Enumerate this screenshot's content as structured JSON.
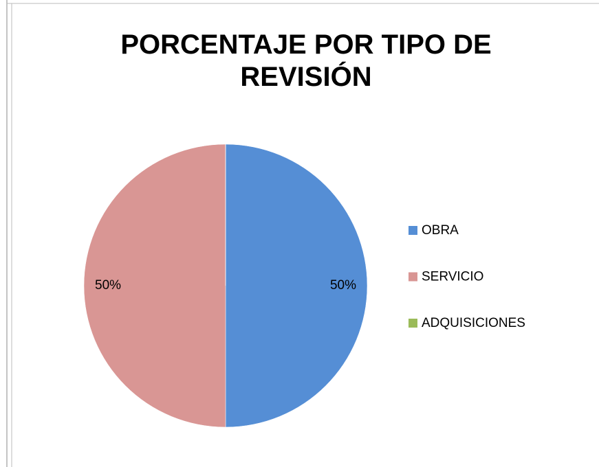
{
  "chart_data": {
    "type": "pie",
    "title": "PORCENTAJE POR TIPO DE REVISIÓN",
    "categories": [
      "OBRA",
      "SERVICIO",
      "ADQUISICIONES"
    ],
    "values": [
      50,
      50,
      0
    ],
    "value_labels": [
      "50%",
      "50%",
      null
    ],
    "colors": [
      "#558ed5",
      "#d99694",
      "#9bbb59"
    ],
    "legend": "right"
  }
}
